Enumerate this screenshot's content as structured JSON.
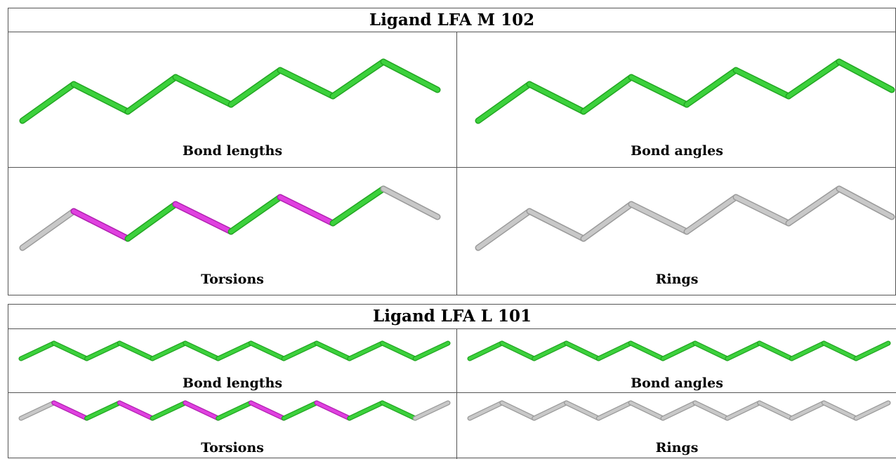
{
  "colors": {
    "ok": "#3cd13c",
    "outlier": "#e040e0",
    "none": "#c8c8c8"
  },
  "panels": [
    {
      "title": "Ligand LFA M 102",
      "cells": [
        {
          "label": "Bond lengths",
          "bond_status": [
            "ok",
            "ok",
            "ok",
            "ok",
            "ok",
            "ok",
            "ok",
            "ok"
          ]
        },
        {
          "label": "Bond angles",
          "bond_status": [
            "ok",
            "ok",
            "ok",
            "ok",
            "ok",
            "ok",
            "ok",
            "ok"
          ]
        },
        {
          "label": "Torsions",
          "bond_status": [
            "none",
            "outlier",
            "ok",
            "outlier",
            "ok",
            "outlier",
            "ok",
            "none"
          ]
        },
        {
          "label": "Rings",
          "bond_status": [
            "none",
            "none",
            "none",
            "none",
            "none",
            "none",
            "none",
            "none"
          ]
        }
      ]
    },
    {
      "title": "Ligand LFA L 101",
      "cells": [
        {
          "label": "Bond lengths",
          "bond_status": [
            "ok",
            "ok",
            "ok",
            "ok",
            "ok",
            "ok",
            "ok",
            "ok",
            "ok",
            "ok",
            "ok",
            "ok",
            "ok"
          ]
        },
        {
          "label": "Bond angles",
          "bond_status": [
            "ok",
            "ok",
            "ok",
            "ok",
            "ok",
            "ok",
            "ok",
            "ok",
            "ok",
            "ok",
            "ok",
            "ok",
            "ok"
          ]
        },
        {
          "label": "Torsions",
          "bond_status": [
            "none",
            "outlier",
            "ok",
            "outlier",
            "ok",
            "outlier",
            "ok",
            "outlier",
            "ok",
            "outlier",
            "ok",
            "ok",
            "none"
          ]
        },
        {
          "label": "Rings",
          "bond_status": [
            "none",
            "none",
            "none",
            "none",
            "none",
            "none",
            "none",
            "none",
            "none",
            "none",
            "none",
            "none",
            "none"
          ]
        }
      ]
    }
  ]
}
